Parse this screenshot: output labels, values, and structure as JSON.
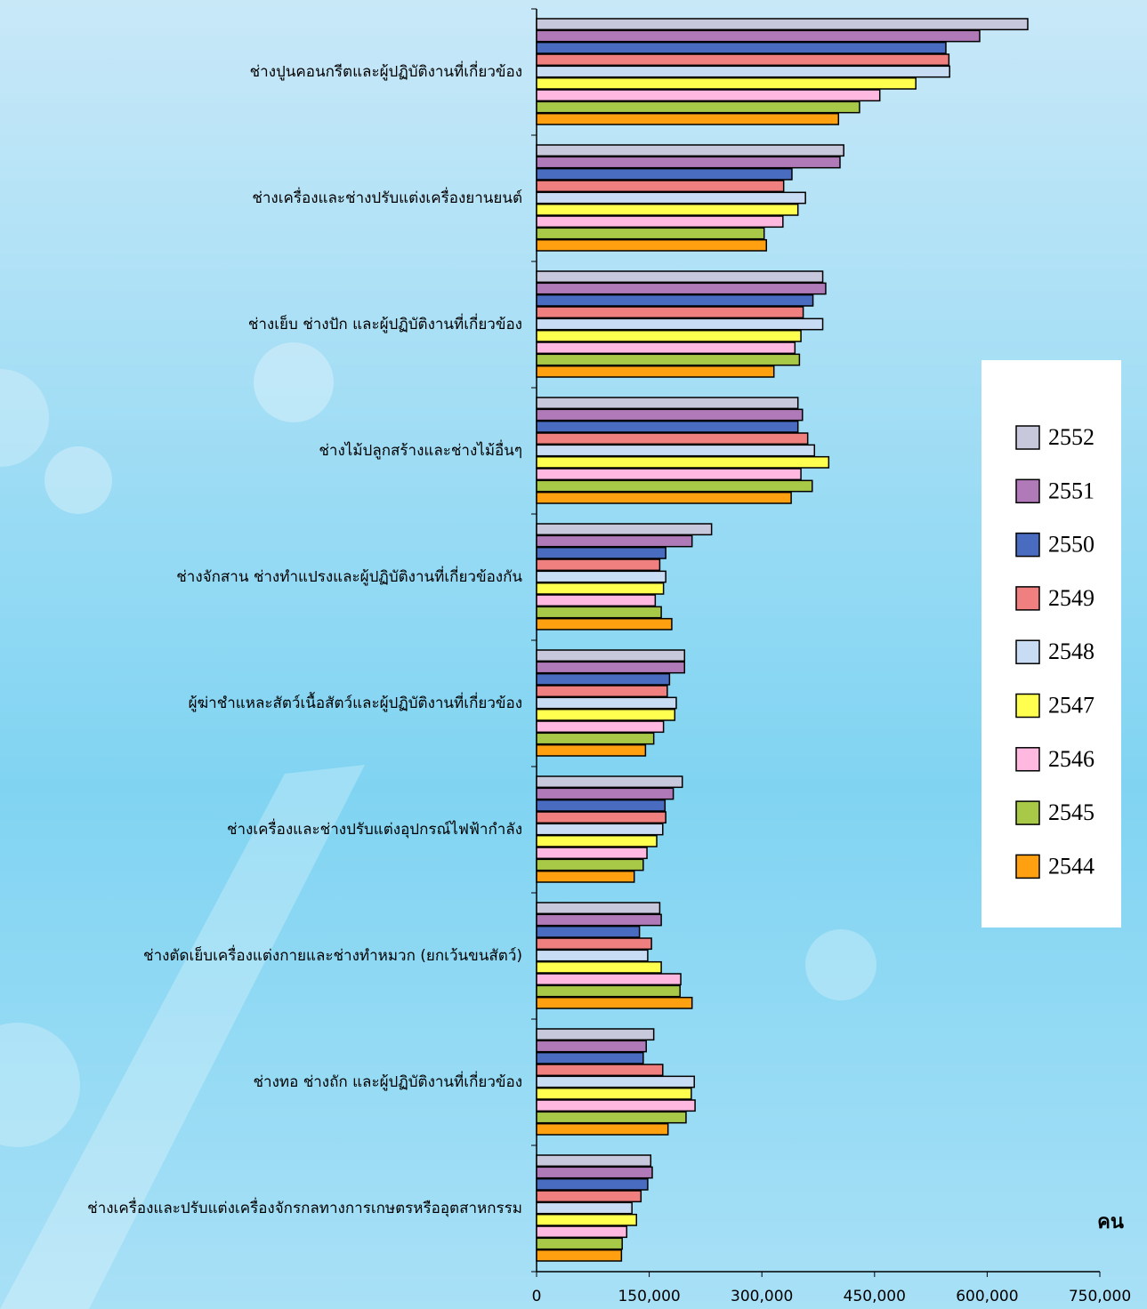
{
  "chart_data": {
    "type": "barh",
    "x_label": "คน",
    "categories": [
      "ช่างปูนคอนกรีตและผู้ปฏิบัติงานที่เกี่ยวข้อง",
      "ช่างเครื่องและช่างปรับแต่งเครื่องยานยนต์",
      "ช่างเย็บ ช่างปัก และผู้ปฏิบัติงานที่เกี่ยวข้อง",
      "ช่างไม้ปลูกสร้างและช่างไม้อื่นๆ",
      "ช่างจักสาน ช่างทำแปรงและผู้ปฏิบัติงานที่เกี่ยวข้องกัน",
      "ผู้ฆ่าชำแหละสัตว์เนื้อสัตว์และผู้ปฏิบัติงานที่เกี่ยวข้อง",
      "ช่างเครื่องและช่างปรับแต่งอุปกรณ์ไฟฟ้ากำลัง",
      "ช่างตัดเย็บเครื่องแต่งกายและช่างทำหมวก (ยกเว้นขนสัตว์)",
      "ช่างทอ ช่างถัก และผู้ปฏิบัติงานที่เกี่ยวข้อง",
      "ช่างเครื่องและปรับแต่งเครื่องจักรกลทางการเกษตรหรืออุตสาหกรรม"
    ],
    "series": [
      {
        "name": "2552",
        "color": "#c8c8dc",
        "values": [
          654000,
          409000,
          381000,
          348000,
          233000,
          197000,
          194000,
          164000,
          156000,
          152000
        ]
      },
      {
        "name": "2551",
        "color": "#b07ab8",
        "values": [
          590000,
          404000,
          385000,
          354000,
          207000,
          197000,
          182000,
          166000,
          146000,
          154000
        ]
      },
      {
        "name": "2550",
        "color": "#4a6cc0",
        "values": [
          545000,
          340000,
          368000,
          348000,
          172000,
          177000,
          171000,
          137000,
          142000,
          148000
        ]
      },
      {
        "name": "2549",
        "color": "#f08080",
        "values": [
          549000,
          329000,
          355000,
          361000,
          164000,
          174000,
          172000,
          153000,
          168000,
          139000
        ]
      },
      {
        "name": "2548",
        "color": "#c8dcf4",
        "values": [
          550000,
          358000,
          381000,
          370000,
          172000,
          186000,
          168000,
          148000,
          210000,
          127000
        ]
      },
      {
        "name": "2547",
        "color": "#ffff50",
        "values": [
          505000,
          348000,
          352000,
          389000,
          169000,
          184000,
          160000,
          166000,
          206000,
          133000
        ]
      },
      {
        "name": "2546",
        "color": "#ffb8e0",
        "values": [
          457000,
          328000,
          344000,
          352000,
          158000,
          169000,
          147000,
          192000,
          211000,
          120000
        ]
      },
      {
        "name": "2545",
        "color": "#a8c848",
        "values": [
          430000,
          303000,
          350000,
          367000,
          166000,
          156000,
          142000,
          191000,
          199000,
          114000
        ]
      },
      {
        "name": "2544",
        "color": "#ffa010",
        "values": [
          402000,
          306000,
          316000,
          339000,
          180000,
          145000,
          130000,
          207000,
          175000,
          113000
        ]
      }
    ],
    "xlim": [
      0,
      750000
    ],
    "xticks": [
      0,
      {
        "value": 150000,
        "label": "150,000"
      },
      {
        "value": 300000,
        "label": "300,000"
      },
      {
        "value": 450000,
        "label": "450,000"
      },
      {
        "value": 600000,
        "label": "600,000"
      },
      {
        "value": 750000,
        "label": "750,000"
      }
    ]
  }
}
